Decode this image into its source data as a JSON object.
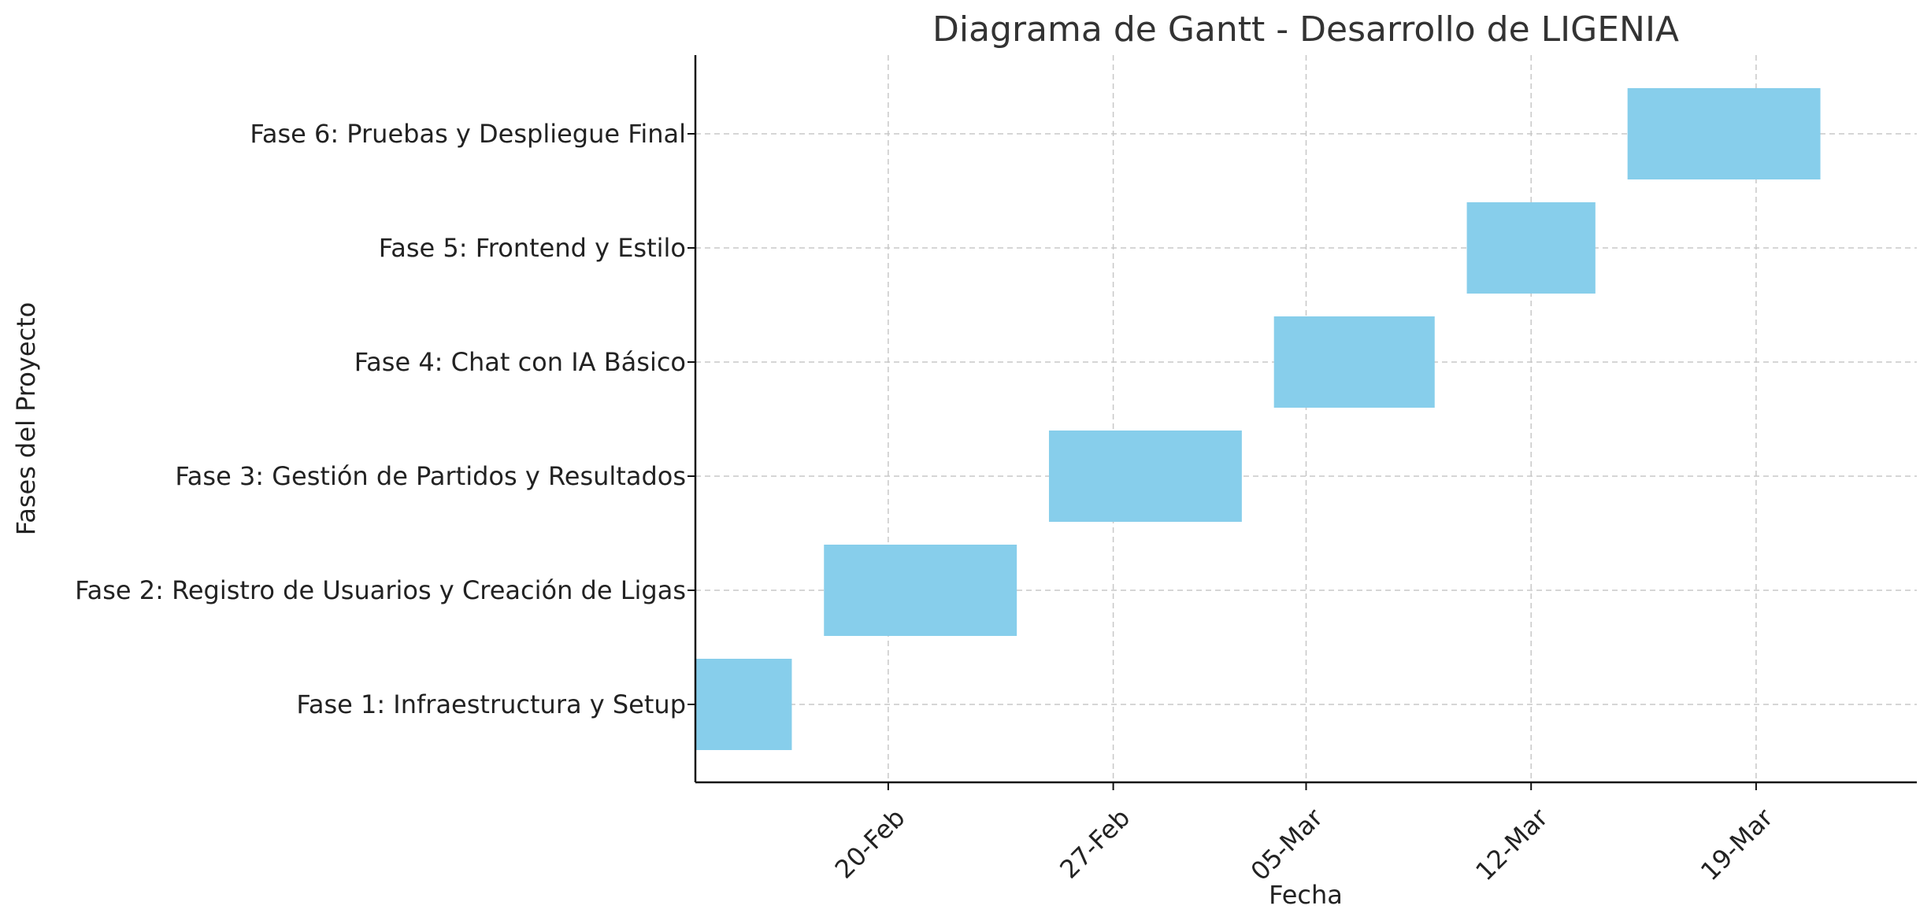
{
  "chart_data": {
    "type": "gantt",
    "title": "Diagrama de Gantt - Desarrollo de LIGENIA",
    "xlabel": "Fecha",
    "ylabel": "Fases del Proyecto",
    "xlim": [
      "2025-02-14",
      "2025-03-24"
    ],
    "x_ticks": [
      {
        "date": "2025-02-20",
        "label": "20-Feb"
      },
      {
        "date": "2025-02-27",
        "label": "27-Feb"
      },
      {
        "date": "2025-03-05",
        "label": "05-Mar"
      },
      {
        "date": "2025-03-12",
        "label": "12-Mar"
      },
      {
        "date": "2025-03-19",
        "label": "19-Mar"
      }
    ],
    "grid": true,
    "bar_color": "#87ceeb",
    "tasks": [
      {
        "name": "Fase 1: Infraestructura y Setup",
        "start": "2025-02-14",
        "end": "2025-02-17"
      },
      {
        "name": "Fase 2: Registro de Usuarios y Creación de Ligas",
        "start": "2025-02-18",
        "end": "2025-02-24"
      },
      {
        "name": "Fase 3: Gestión de Partidos y Resultados",
        "start": "2025-02-25",
        "end": "2025-03-03"
      },
      {
        "name": "Fase 4: Chat con IA Básico",
        "start": "2025-03-04",
        "end": "2025-03-09"
      },
      {
        "name": "Fase 5: Frontend y Estilo",
        "start": "2025-03-10",
        "end": "2025-03-14"
      },
      {
        "name": "Fase 6: Pruebas y Despliegue Final",
        "start": "2025-03-15",
        "end": "2025-03-21"
      }
    ]
  }
}
